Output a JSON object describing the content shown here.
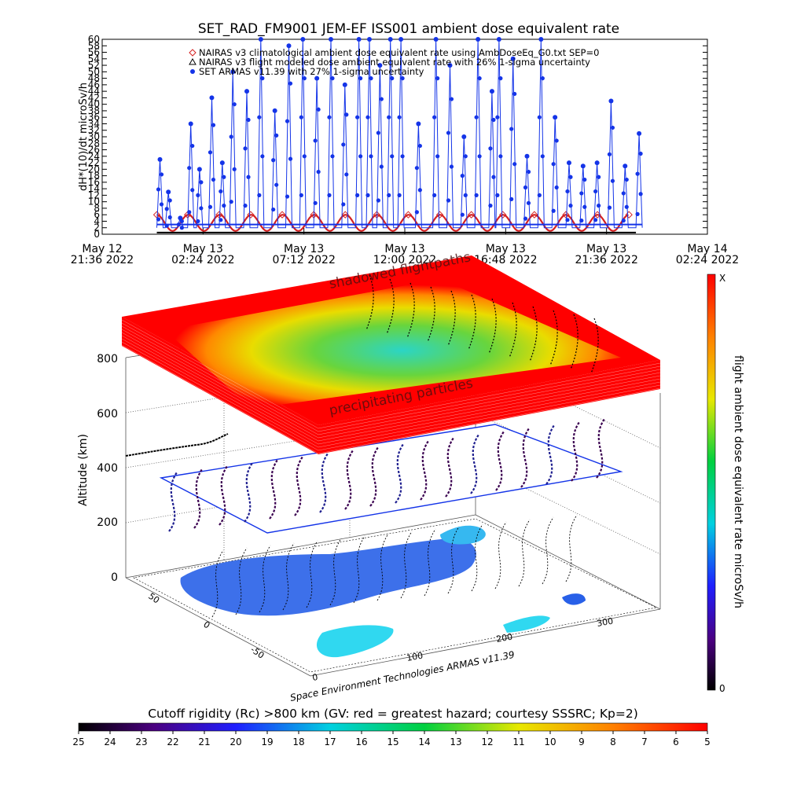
{
  "title": "SET_RAD_FM9001  JEM-EF ISS001 ambient dose equivalent rate",
  "timeseries": {
    "ylabel": "dH*(10)/dt microSv/h",
    "yticks": [
      0,
      2,
      4,
      6,
      8,
      10,
      12,
      14,
      16,
      18,
      20,
      22,
      24,
      26,
      28,
      30,
      32,
      34,
      36,
      38,
      40,
      42,
      44,
      46,
      48,
      50,
      52,
      54,
      56,
      58,
      60
    ],
    "xticks": [
      {
        "date": "May 12",
        "time": "21:36 2022"
      },
      {
        "date": "May 13",
        "time": "02:24 2022"
      },
      {
        "date": "May 13",
        "time": "07:12 2022"
      },
      {
        "date": "May 13",
        "time": "12:00 2022"
      },
      {
        "date": "May 13",
        "time": "16:48 2022"
      },
      {
        "date": "May 13",
        "time": "21:36 2022"
      },
      {
        "date": "May 14",
        "time": "02:24 2022"
      }
    ],
    "legend": [
      "NAIRAS v3 climatological ambient dose equivalent rate using AmbDoseEq_G0.txt SEP=0",
      "NAIRAS v3 flight modeled dose ambient equivalent rate with 26% 1-sigma uncertainty",
      "SET ARMAS v11.39 with 27% 1-sigma uncertainty"
    ],
    "colors": {
      "climatology": "#d42020",
      "model": "#000000",
      "armas": "#1434e8"
    }
  },
  "chart_data": [
    {
      "type": "line",
      "title": "SET_RAD_FM9001  JEM-EF ISS001 ambient dose equivalent rate",
      "xlabel": "",
      "ylabel": "dH*(10)/dt microSv/h",
      "ylim": [
        0,
        60
      ],
      "xlim": [
        "2022-05-12T21:36",
        "2022-05-14T02:24"
      ],
      "grid": false,
      "legend_position": "top",
      "series": [
        {
          "name": "SET ARMAS v11.39 with 27% 1-sigma uncertainty",
          "x": [
            "2022-05-13T00:12",
            "2022-05-13T00:36",
            "2022-05-13T01:10",
            "2022-05-13T01:40",
            "2022-05-13T02:05",
            "2022-05-13T02:40",
            "2022-05-13T03:10",
            "2022-05-13T03:40",
            "2022-05-13T04:20",
            "2022-05-13T05:00",
            "2022-05-13T05:40",
            "2022-05-13T06:20",
            "2022-05-13T07:00",
            "2022-05-13T07:40",
            "2022-05-13T08:20",
            "2022-05-13T09:00",
            "2022-05-13T09:40",
            "2022-05-13T10:10",
            "2022-05-13T10:40",
            "2022-05-13T11:10",
            "2022-05-13T11:40",
            "2022-05-13T12:30",
            "2022-05-13T13:20",
            "2022-05-13T14:00",
            "2022-05-13T14:40",
            "2022-05-13T15:20",
            "2022-05-13T16:00",
            "2022-05-13T16:20",
            "2022-05-13T17:00",
            "2022-05-13T17:40",
            "2022-05-13T18:20",
            "2022-05-13T19:00",
            "2022-05-13T19:40",
            "2022-05-13T20:20",
            "2022-05-13T21:00",
            "2022-05-13T21:40",
            "2022-05-13T22:20",
            "2022-05-13T23:00"
          ],
          "y": [
            23,
            13,
            5,
            34,
            20,
            42,
            22,
            50,
            44,
            60,
            38,
            58,
            60,
            48,
            60,
            46,
            60,
            60,
            52,
            60,
            60,
            34,
            60,
            52,
            30,
            60,
            44,
            60,
            54,
            24,
            60,
            36,
            22,
            21,
            22,
            41,
            21,
            31
          ]
        },
        {
          "name": "NAIRAS v3 climatological ambient dose equivalent rate using AmbDoseEq_G0.txt SEP=0",
          "x": [
            "2022-05-13T00:12",
            "2022-05-13T01:40",
            "2022-05-13T03:10",
            "2022-05-13T04:40",
            "2022-05-13T06:10",
            "2022-05-13T07:40",
            "2022-05-13T09:10",
            "2022-05-13T10:40",
            "2022-05-13T12:10",
            "2022-05-13T13:40",
            "2022-05-13T15:10",
            "2022-05-13T16:40",
            "2022-05-13T18:10",
            "2022-05-13T19:40",
            "2022-05-13T21:10",
            "2022-05-13T22:40"
          ],
          "y": [
            6,
            6,
            6,
            6,
            6,
            6,
            6,
            6,
            6,
            6,
            6,
            6,
            6,
            6,
            6,
            6
          ]
        },
        {
          "name": "NAIRAS v3 flight modeled dose ambient equivalent rate with 26% 1-sigma uncertainty",
          "x": [
            "2022-05-13T00:12",
            "2022-05-13T23:00"
          ],
          "y": [
            0.5,
            0.5
          ]
        }
      ]
    },
    {
      "type": "heatmap",
      "title": "",
      "zlabel": "Altitude (km)",
      "zticks": [
        0,
        200,
        400,
        600,
        800
      ],
      "layer_labels": [
        "shadowed flightpaths",
        "precipitating particles"
      ],
      "x_ticks_front": [
        0,
        100,
        200,
        300
      ],
      "y_ticks_side": [
        -50,
        0,
        50
      ],
      "colorbar": {
        "label": "flight ambient dose equivalent rate microSv/h",
        "top": "X",
        "bottom": "0"
      }
    },
    {
      "type": "heatmap",
      "title": "Cutoff rigidity (Rc) >800 km (GV: red = greatest hazard; courtesy SSSRC; Kp=2)",
      "colorbar_ticks": [
        25,
        24,
        23,
        22,
        21,
        20,
        19,
        18,
        17,
        16,
        15,
        14,
        13,
        12,
        11,
        10,
        9,
        8,
        7,
        6,
        5
      ]
    }
  ],
  "credit": "Space Environment Technologies ARMAS v11.39",
  "cube": {
    "zlabel": "Altitude (km)",
    "zticks": [
      "0",
      "200",
      "400",
      "600",
      "800"
    ],
    "xticks": [
      "0",
      "100",
      "200",
      "300"
    ],
    "yticks": [
      "50",
      "0",
      "-50"
    ],
    "shadow_label": "shadowed flightpaths",
    "precip_label": "precipitating particles"
  },
  "vcolorbar": {
    "label": "flight ambient dose equivalent rate microSv/h",
    "top": "X",
    "bottom": "0"
  },
  "hcolorbar": {
    "title": "Cutoff rigidity (Rc) >800 km (GV: red = greatest hazard; courtesy SSSRC; Kp=2)",
    "ticks": [
      "25",
      "24",
      "23",
      "22",
      "21",
      "20",
      "19",
      "18",
      "17",
      "16",
      "15",
      "14",
      "13",
      "12",
      "11",
      "10",
      "9",
      "8",
      "7",
      "6",
      "5"
    ]
  }
}
